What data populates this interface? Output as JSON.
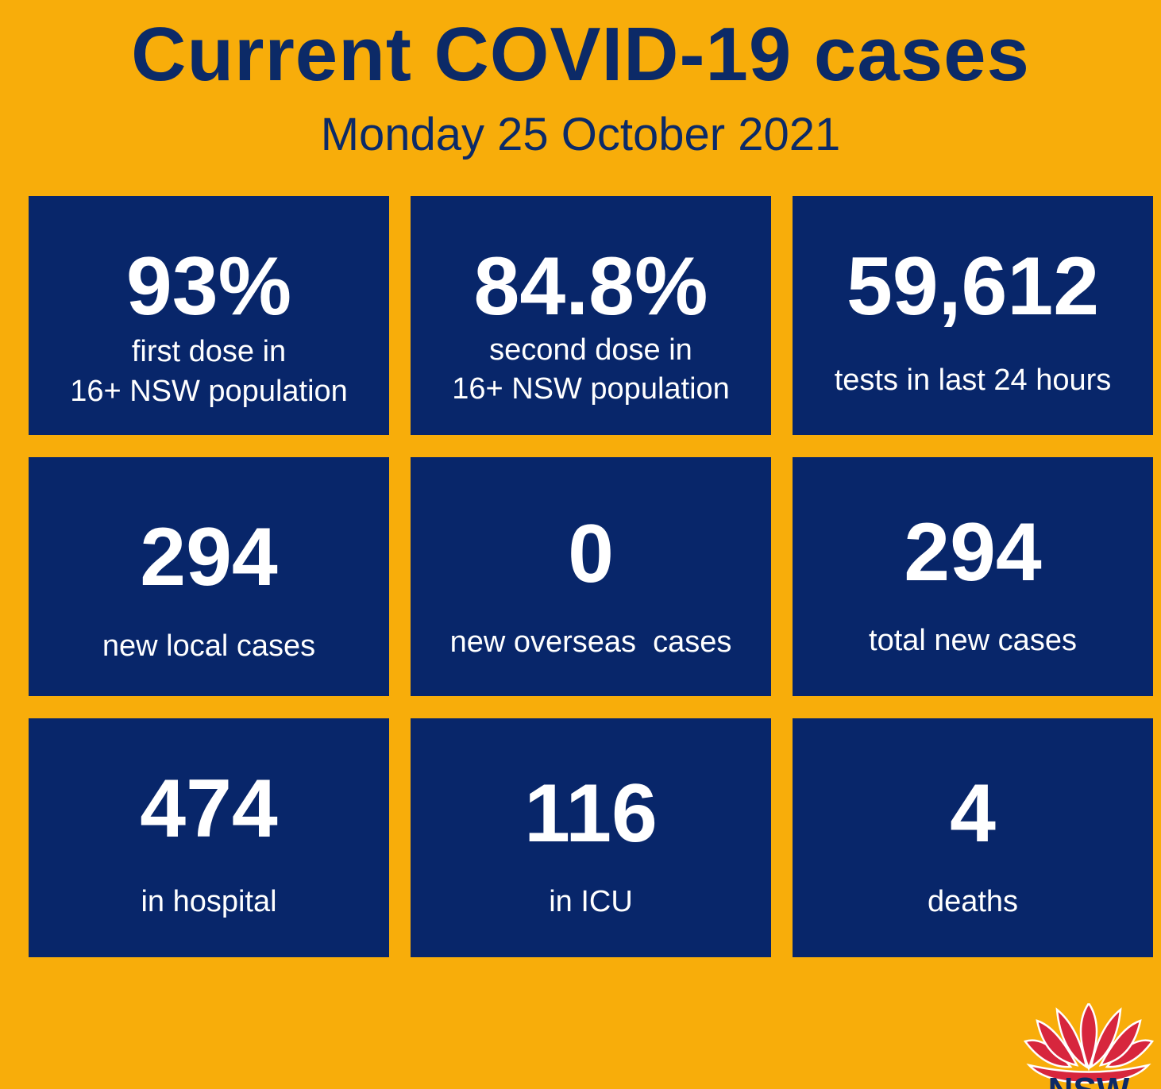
{
  "header": {
    "title": "Current COVID-19 cases",
    "date": "Monday 25 October 2021"
  },
  "colors": {
    "background": "#f8ad0a",
    "tile": "#08266a",
    "text_dark": "#0c2a67",
    "logo_red": "#d7263d"
  },
  "tiles": [
    {
      "value": "93%",
      "label_1": "first dose in",
      "label_2": "16+ NSW population"
    },
    {
      "value": "84.8%",
      "label_1": "second dose in",
      "label_2": "16+ NSW population"
    },
    {
      "value": "59,612",
      "label_1": "tests in last 24 hours"
    },
    {
      "value": "294",
      "label_1": "new local cases"
    },
    {
      "value": "0",
      "label_1": "new overseas  cases"
    },
    {
      "value": "294",
      "label_1": "total new cases"
    },
    {
      "value": "474",
      "label_1": "in hospital"
    },
    {
      "value": "116",
      "label_1": "in ICU"
    },
    {
      "value": "4",
      "label_1": "deaths"
    }
  ],
  "logo": {
    "icon": "waratah-icon",
    "text": "NSW"
  }
}
